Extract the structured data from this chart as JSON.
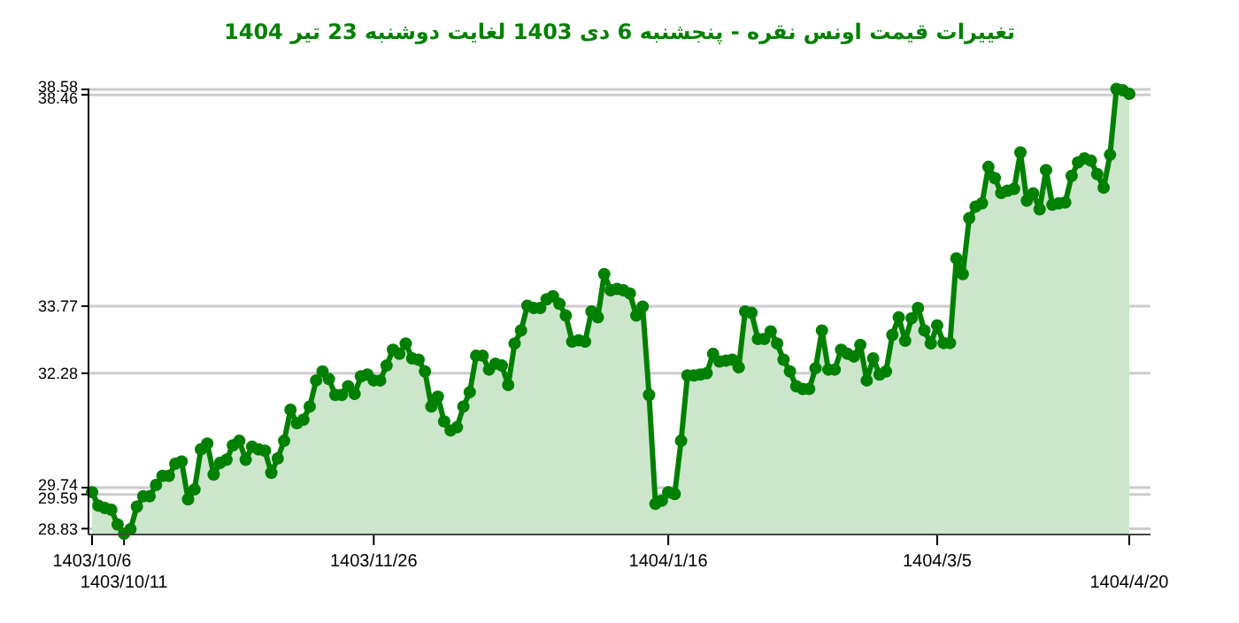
{
  "chart_data": {
    "type": "area",
    "title": "تغییرات قیمت اونس نقره - پنجشنبه  6 دی 1403 لغایت  دوشنبه  23 تیر 1404",
    "categories": [
      "1403/10/6",
      null,
      null,
      null,
      null,
      "1403/10/11",
      null,
      null,
      null,
      null,
      null,
      null,
      null,
      null,
      null,
      null,
      null,
      null,
      null,
      null,
      null,
      null,
      null,
      null,
      null,
      null,
      null,
      null,
      null,
      null,
      null,
      null,
      null,
      null,
      null,
      null,
      null,
      null,
      null,
      null,
      null,
      null,
      null,
      null,
      "1403/11/26",
      null,
      null,
      null,
      null,
      null,
      null,
      null,
      null,
      null,
      null,
      null,
      null,
      null,
      null,
      null,
      null,
      null,
      null,
      null,
      null,
      null,
      null,
      null,
      null,
      null,
      null,
      null,
      null,
      null,
      null,
      null,
      null,
      null,
      null,
      null,
      null,
      null,
      null,
      null,
      null,
      null,
      null,
      null,
      null,
      null,
      "1404/1/16",
      null,
      null,
      null,
      null,
      null,
      null,
      null,
      null,
      null,
      null,
      null,
      null,
      null,
      null,
      null,
      null,
      null,
      null,
      null,
      null,
      null,
      null,
      null,
      null,
      null,
      null,
      null,
      null,
      null,
      null,
      null,
      null,
      null,
      null,
      null,
      null,
      null,
      null,
      null,
      null,
      null,
      "1404/3/5",
      null,
      null,
      null,
      null,
      null,
      null,
      null,
      null,
      null,
      null,
      null,
      null,
      null,
      null,
      null,
      null,
      null,
      null,
      null,
      null,
      null,
      null,
      null,
      null,
      null,
      null,
      null,
      null,
      null,
      "1404/4/20"
    ],
    "series": [
      {
        "color": "#008000",
        "values": [
          29.64,
          29.34,
          29.29,
          29.25,
          28.92,
          28.72,
          28.82,
          29.32,
          29.55,
          29.55,
          29.8,
          30.0,
          30.0,
          30.27,
          30.32,
          29.48,
          29.7,
          30.59,
          30.72,
          30.03,
          30.29,
          30.36,
          30.68,
          30.78,
          30.36,
          30.65,
          30.59,
          30.56,
          30.07,
          30.39,
          30.78,
          31.47,
          31.17,
          31.25,
          31.54,
          32.12,
          32.32,
          32.15,
          31.8,
          31.8,
          31.99,
          31.82,
          32.21,
          32.25,
          32.12,
          32.12,
          32.45,
          32.8,
          32.71,
          32.94,
          32.61,
          32.58,
          32.32,
          31.54,
          31.76,
          31.21,
          31.01,
          31.08,
          31.54,
          31.86,
          32.67,
          32.67,
          32.36,
          32.49,
          32.45,
          32.02,
          32.94,
          33.23,
          33.78,
          33.73,
          33.73,
          33.92,
          33.99,
          33.82,
          33.56,
          32.98,
          33.01,
          32.98,
          33.65,
          33.52,
          34.48,
          34.12,
          34.15,
          34.12,
          34.05,
          33.56,
          33.76,
          31.8,
          29.38,
          29.45,
          29.64,
          29.6,
          30.78,
          32.23,
          32.23,
          32.25,
          32.28,
          32.71,
          32.54,
          32.56,
          32.58,
          32.41,
          33.65,
          33.62,
          33.04,
          33.04,
          33.21,
          32.94,
          32.58,
          32.32,
          31.99,
          31.93,
          31.93,
          32.39,
          33.23,
          32.36,
          32.36,
          32.8,
          32.71,
          32.65,
          32.91,
          32.12,
          32.61,
          32.25,
          32.32,
          33.13,
          33.52,
          33.0,
          33.5,
          33.73,
          33.23,
          32.94,
          33.34,
          32.95,
          32.95,
          34.83,
          34.48,
          35.72,
          35.98,
          36.05,
          36.86,
          36.61,
          36.28,
          36.33,
          36.37,
          37.18,
          36.11,
          36.27,
          35.92,
          36.79,
          36.02,
          36.05,
          36.07,
          36.66,
          36.96,
          37.05,
          37.0,
          36.7,
          36.4,
          37.13,
          38.59,
          38.56,
          38.48
        ]
      }
    ],
    "ylim": [
      28.7,
      38.6
    ],
    "yticks": [
      28.83,
      29.59,
      29.74,
      32.28,
      33.77,
      38.46,
      38.58
    ],
    "grid": "y",
    "marker": "circle",
    "line_style": "solid"
  }
}
